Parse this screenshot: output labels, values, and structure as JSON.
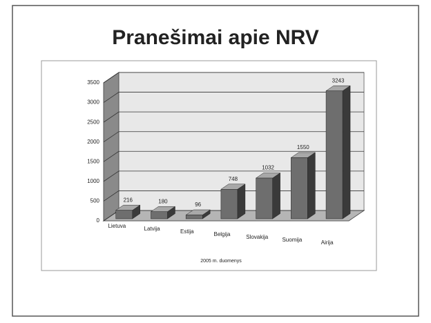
{
  "chart_data": {
    "type": "bar3d",
    "title": "Pranešimai apie NRV",
    "x_label": "2005 m. duomenys",
    "categories": [
      "Lietuva",
      "Latvija",
      "Estija",
      "Belgija",
      "Slovakija",
      "Suomija",
      "Airija"
    ],
    "values": [
      216,
      180,
      96,
      748,
      1032,
      1550,
      3243
    ],
    "color": "#6e6e6e",
    "ylim": [
      0,
      3500
    ],
    "yticks": [
      0,
      500,
      1000,
      1500,
      2000,
      2500,
      3000,
      3500
    ],
    "grid": true
  }
}
